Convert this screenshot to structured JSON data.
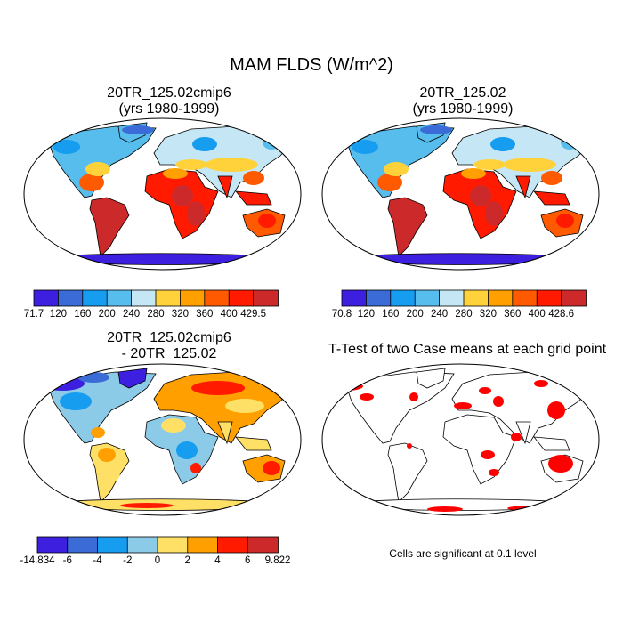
{
  "figure": {
    "title": "MAM FLDS (W/m^2)"
  },
  "panels": {
    "top_left": {
      "title_line1": "20TR_125.02cmip6",
      "title_line2": "(yrs 1980-1999)"
    },
    "top_right": {
      "title_line1": "20TR_125.02",
      "title_line2": "(yrs 1980-1999)"
    },
    "bottom_left": {
      "title_line1": "20TR_125.02cmip6",
      "title_line2": "- 20TR_125.02"
    },
    "bottom_right": {
      "title_line1": "T-Test of two Case means at each grid point"
    }
  },
  "colorbars": {
    "abs_left": {
      "labels": [
        "71.7",
        "120",
        "160",
        "200",
        "240",
        "280",
        "320",
        "360",
        "400",
        "429.5"
      ],
      "colors": [
        "#3d1fe0",
        "#3a6bd6",
        "#169df0",
        "#56bdec",
        "#c4e6f5",
        "#ffd23c",
        "#ffa000",
        "#ff5a00",
        "#ff1a00",
        "#cc2a2a"
      ]
    },
    "abs_right": {
      "labels": [
        "70.8",
        "120",
        "160",
        "200",
        "240",
        "280",
        "320",
        "360",
        "400",
        "428.6"
      ],
      "colors": [
        "#3d1fe0",
        "#3a6bd6",
        "#169df0",
        "#56bdec",
        "#c4e6f5",
        "#ffd23c",
        "#ffa000",
        "#ff5a00",
        "#ff1a00",
        "#cc2a2a"
      ]
    },
    "diff": {
      "labels": [
        "-14.834",
        "-6",
        "-4",
        "-2",
        "0",
        "2",
        "4",
        "6",
        "9.822"
      ],
      "colors": [
        "#3d1fe0",
        "#3a6bd6",
        "#169df0",
        "#8ccbe8",
        "#ffe066",
        "#ffa000",
        "#ff1a00",
        "#cc2a2a"
      ]
    }
  },
  "ttest": {
    "note": "Cells are significant at 0.1 level",
    "significant_color": "#ff0000"
  }
}
